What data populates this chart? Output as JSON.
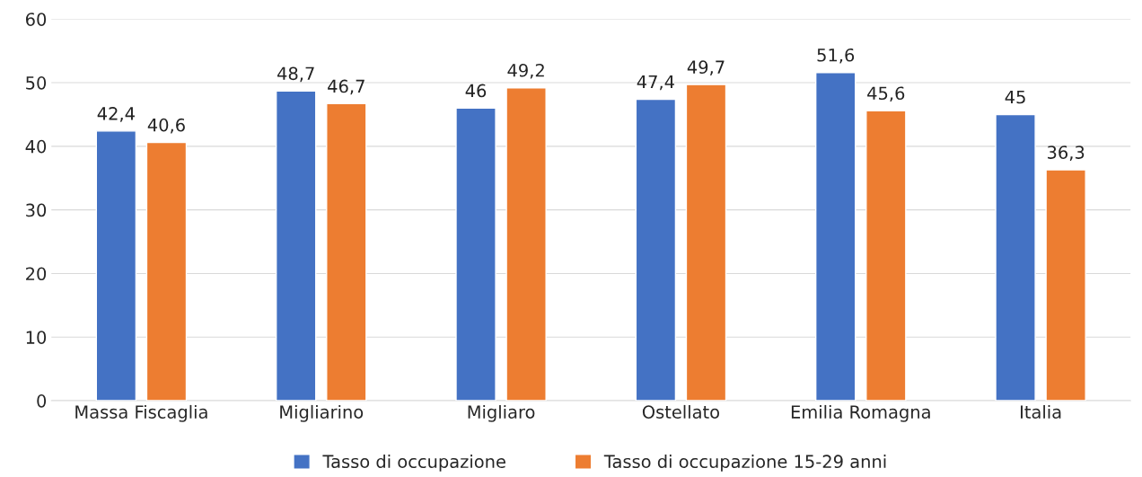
{
  "chart_data": {
    "type": "bar",
    "categories": [
      "Massa Fiscaglia",
      "Migliarino",
      "Migliaro",
      "Ostellato",
      "Emilia Romagna",
      "Italia"
    ],
    "series": [
      {
        "name": "Tasso di occupazione",
        "color": "#4472c4",
        "values": [
          42.4,
          48.7,
          46,
          47.4,
          51.6,
          45
        ],
        "value_labels": [
          "42,4",
          "48,7",
          "46",
          "47,4",
          "51,6",
          "45"
        ]
      },
      {
        "name": "Tasso di occupazione 15-29 anni",
        "color": "#ed7d31",
        "values": [
          40.6,
          46.7,
          49.2,
          49.7,
          45.6,
          36.3
        ],
        "value_labels": [
          "40,6",
          "46,7",
          "49,2",
          "49,7",
          "45,6",
          "36,3"
        ]
      }
    ],
    "ylim": [
      0,
      60
    ],
    "yticks": [
      0,
      10,
      20,
      30,
      40,
      50,
      60
    ],
    "grid": "y",
    "legend": "bottom"
  }
}
